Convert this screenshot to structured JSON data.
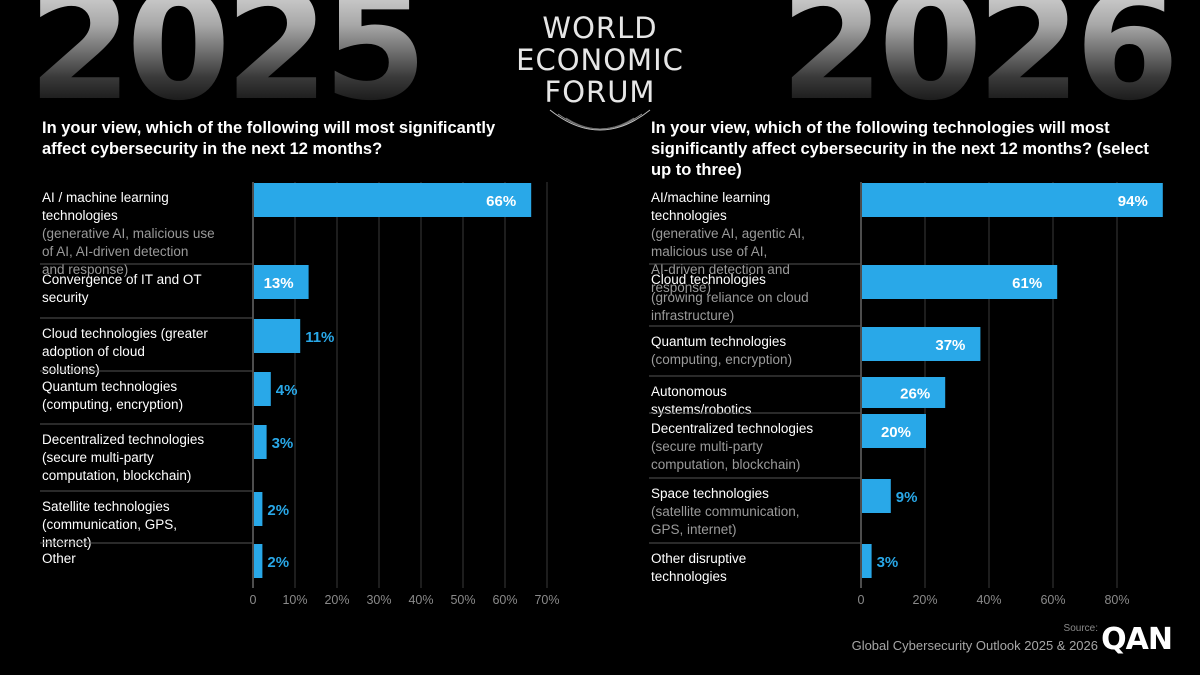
{
  "header": {
    "year_left": "2025",
    "year_right": "2026",
    "logo_lines": [
      "WORLD",
      "ECONOMIC",
      "FORUM"
    ]
  },
  "footer": {
    "source_label": "Source:",
    "source_text": "Global Cybersecurity Outlook 2025 & 2026",
    "brand": "QAN"
  },
  "colors": {
    "bar": "#29a8e8",
    "grid": "#3a3a3a",
    "separator": "#555555",
    "label_main": "#ffffff",
    "label_sub": "#9a9a9a",
    "tick": "#8a8a8a"
  },
  "chart_data": [
    {
      "type": "bar",
      "orientation": "horizontal",
      "title": "In your view, which of the following will most significantly affect cybersecurity in the next 12 months?",
      "xlim": [
        0,
        70
      ],
      "xticks": [
        "0",
        "10%",
        "20%",
        "30%",
        "40%",
        "50%",
        "60%",
        "70%"
      ],
      "grid": true,
      "categories": [
        {
          "main": "AI / machine learning technologies",
          "sub": "(generative AI, malicious use of AI, AI-driven detection and response)"
        },
        {
          "main": "Convergence of IT and OT security",
          "sub": ""
        },
        {
          "main": "Cloud technologies (greater adoption of cloud solutions)",
          "sub": ""
        },
        {
          "main": "Quantum technologies (computing, encryption)",
          "sub": ""
        },
        {
          "main": "Decentralized technologies (secure multi-party computation, blockchain)",
          "sub": ""
        },
        {
          "main": "Satellite technologies (communication, GPS, internet)",
          "sub": ""
        },
        {
          "main": "Other",
          "sub": ""
        }
      ],
      "values": [
        66,
        13,
        11,
        4,
        3,
        2,
        2
      ],
      "value_labels": [
        "66%",
        "13%",
        "11%",
        "4%",
        "3%",
        "2%",
        "2%"
      ]
    },
    {
      "type": "bar",
      "orientation": "horizontal",
      "title": "In your view, which of the following technologies will most significantly affect cybersecurity in the next 12 months? (select up to three)",
      "xlim": [
        0,
        90
      ],
      "xticks": [
        "0",
        "20%",
        "40%",
        "60%",
        "80%"
      ],
      "grid": true,
      "categories": [
        {
          "main": "AI/machine learning technologies",
          "sub": "(generative AI, agentic AI, malicious use of AI, AI-driven detection and response)"
        },
        {
          "main": "Cloud technologies",
          "sub": "(growing reliance on cloud infrastructure)"
        },
        {
          "main": "Quantum technologies",
          "sub": "(computing, encryption)"
        },
        {
          "main": "Autonomous systems/robotics",
          "sub": ""
        },
        {
          "main": "Decentralized technologies",
          "sub": "(secure multi-party computation, blockchain)"
        },
        {
          "main": "Space technologies",
          "sub": "(satellite communication, GPS, internet)"
        },
        {
          "main": "Other disruptive technologies",
          "sub": ""
        }
      ],
      "values": [
        94,
        61,
        37,
        26,
        20,
        9,
        3
      ],
      "value_labels": [
        "94%",
        "61%",
        "37%",
        "26%",
        "20%",
        "9%",
        "3%"
      ]
    }
  ]
}
